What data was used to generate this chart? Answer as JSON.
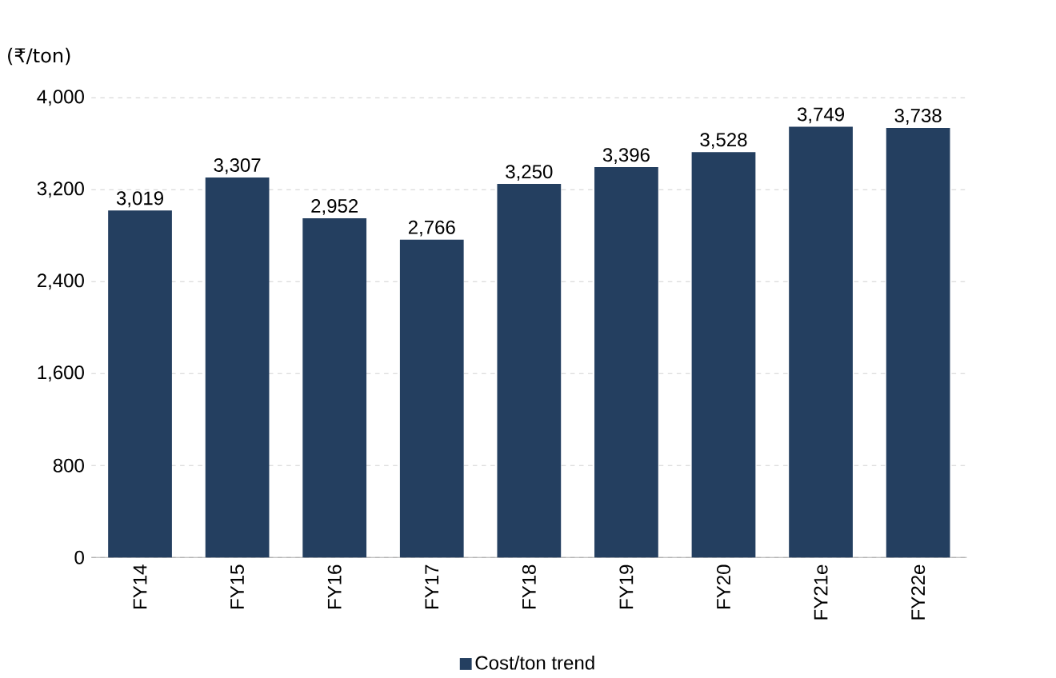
{
  "chart_data": {
    "type": "bar",
    "ylabel": "(₹/ton)",
    "categories": [
      "FY14",
      "FY15",
      "FY16",
      "FY17",
      "FY18",
      "FY19",
      "FY20",
      "FY21e",
      "FY22e"
    ],
    "series": [
      {
        "name": "Cost/ton trend",
        "color": "#243f60",
        "values": [
          3019,
          3307,
          2952,
          2766,
          3250,
          3396,
          3528,
          3749,
          3738
        ],
        "value_labels": [
          "3,019",
          "3,307",
          "2,952",
          "2,766",
          "3,250",
          "3,396",
          "3,528",
          "3,749",
          "3,738"
        ]
      }
    ],
    "ylim": [
      0,
      4000
    ],
    "yticks": [
      0,
      {
        "value": 800,
        "label": "800"
      },
      {
        "value": 1600,
        "label": "1,600"
      },
      {
        "value": 2400,
        "label": "2,400"
      },
      {
        "value": 3200,
        "label": "3,200"
      },
      {
        "value": 4000,
        "label": "4,000"
      }
    ],
    "grid": "y",
    "legend": "bottom"
  }
}
